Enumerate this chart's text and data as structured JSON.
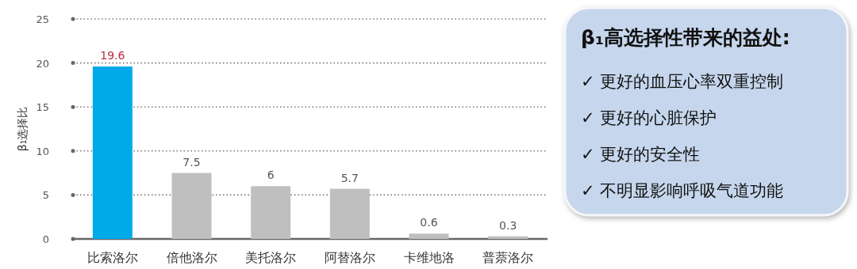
{
  "chart_data": [
    {
      "type": "bar",
      "ylabel": "β₁选择比",
      "categories": [
        "比索洛尔",
        "倍他洛尔",
        "美托洛尔",
        "阿替洛尔",
        "卡维地洛",
        "普萘洛尔"
      ],
      "values": [
        19.6,
        7.5,
        6,
        5.7,
        0.6,
        0.3
      ],
      "colors": [
        "#00a9e8",
        "#bfbfbf",
        "#bfbfbf",
        "#bfbfbf",
        "#bfbfbf",
        "#bfbfbf"
      ],
      "ylim": [
        0,
        25
      ],
      "yticks": [
        0,
        5,
        10,
        15,
        20,
        25
      ],
      "grid": "y",
      "data_labels": true
    },
    {
      "type": "other",
      "title": "β₁高选择性带来的益处:",
      "annotations": [
        "✓ 更好的血压心率双重控制",
        "✓ 更好的心脏保护",
        "✓ 更好的安全性",
        "✓ 不明显影响呼吸气道功能"
      ]
    }
  ]
}
